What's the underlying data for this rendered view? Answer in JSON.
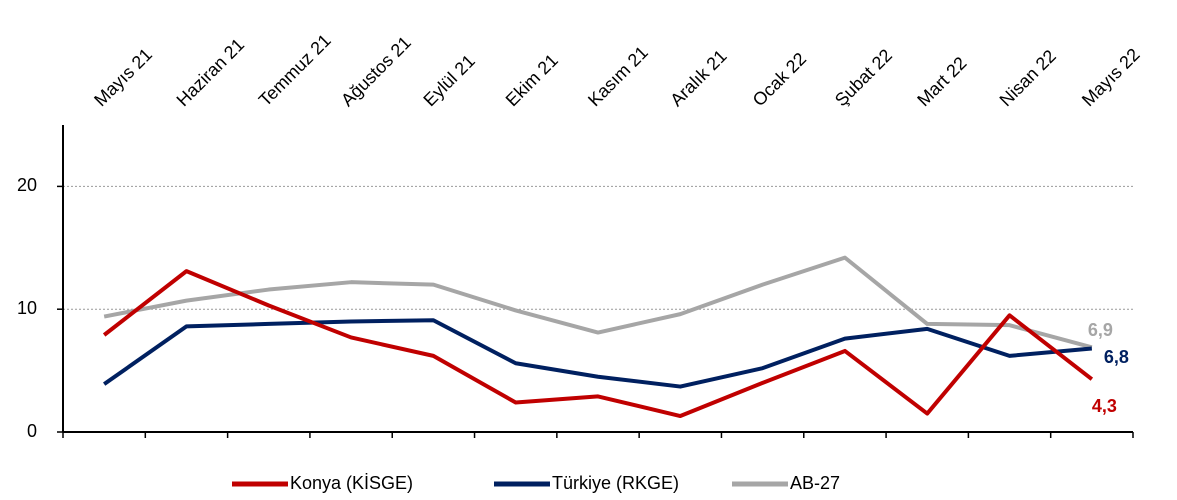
{
  "chart_data": {
    "type": "line",
    "categories": [
      "Mayıs 21",
      "Haziran 21",
      "Temmuz 21",
      "Ağustos 21",
      "Eylül 21",
      "Ekim 21",
      "Kasım 21",
      "Aralık 21",
      "Ocak 22",
      "Şubat 22",
      "Mart 22",
      "Nisan 22",
      "Mayıs 22"
    ],
    "series": [
      {
        "name": "Konya (KİSGE)",
        "color": "#c00000",
        "values": [
          7.9,
          13.1,
          10.3,
          7.7,
          6.2,
          2.4,
          2.9,
          1.3,
          4.0,
          6.6,
          1.5,
          9.5,
          4.3
        ],
        "value_labels": [
          null,
          null,
          null,
          null,
          null,
          null,
          null,
          null,
          null,
          null,
          null,
          null,
          "4,3"
        ]
      },
      {
        "name": "Türkiye (RKGE)",
        "color": "#002060",
        "values": [
          3.9,
          8.6,
          8.8,
          9.0,
          9.1,
          5.6,
          4.5,
          3.7,
          5.2,
          7.6,
          8.4,
          6.2,
          6.8
        ],
        "value_labels": [
          null,
          null,
          null,
          null,
          null,
          null,
          null,
          null,
          null,
          null,
          null,
          null,
          "6,8"
        ]
      },
      {
        "name": "AB-27",
        "color": "#a6a6a6",
        "values": [
          9.4,
          10.7,
          11.6,
          12.2,
          12.0,
          9.9,
          8.1,
          9.6,
          12.0,
          14.2,
          8.8,
          8.7,
          6.9
        ],
        "value_labels": [
          null,
          null,
          null,
          null,
          null,
          null,
          null,
          null,
          null,
          null,
          null,
          null,
          "6,9"
        ]
      }
    ],
    "ylim": [
      0,
      25
    ],
    "yticks": [
      0,
      10,
      20
    ],
    "grid": true,
    "legend": "bottom"
  }
}
